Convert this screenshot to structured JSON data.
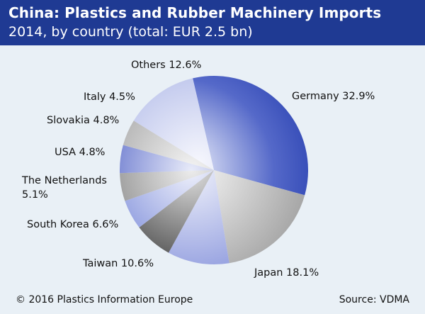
{
  "header": {
    "title": "China: Plastics and Rubber Machinery Imports",
    "subtitle": "2014, by country (total: EUR 2.5 bn)"
  },
  "footer": {
    "copyright": "© 2016 Plastics Information Europe",
    "source": "Source: VDMA"
  },
  "colors": {
    "header_bg": "#1f3a93",
    "page_bg": "#e9f0f6"
  },
  "chart_data": {
    "type": "pie",
    "title": "China: Plastics and Rubber Machinery Imports",
    "subtitle": "2014, by country (total: EUR 2.5 bn)",
    "unit": "%",
    "slices": [
      {
        "name": "Germany",
        "value": 32.9,
        "label": "Germany 32.9%"
      },
      {
        "name": "Japan",
        "value": 18.1,
        "label": "Japan 18.1%"
      },
      {
        "name": "Taiwan",
        "value": 10.6,
        "label": "Taiwan 10.6%"
      },
      {
        "name": "South Korea",
        "value": 6.6,
        "label": "South Korea 6.6%"
      },
      {
        "name": "The Netherlands",
        "value": 5.1,
        "label": "The Netherlands|5.1%"
      },
      {
        "name": "USA",
        "value": 4.8,
        "label": "USA 4.8%"
      },
      {
        "name": "Slovakia",
        "value": 4.8,
        "label": "Slovakia 4.8%"
      },
      {
        "name": "Italy",
        "value": 4.5,
        "label": "Italy 4.5%"
      },
      {
        "name": "Others",
        "value": 12.6,
        "label": "Others 12.6%"
      }
    ]
  }
}
